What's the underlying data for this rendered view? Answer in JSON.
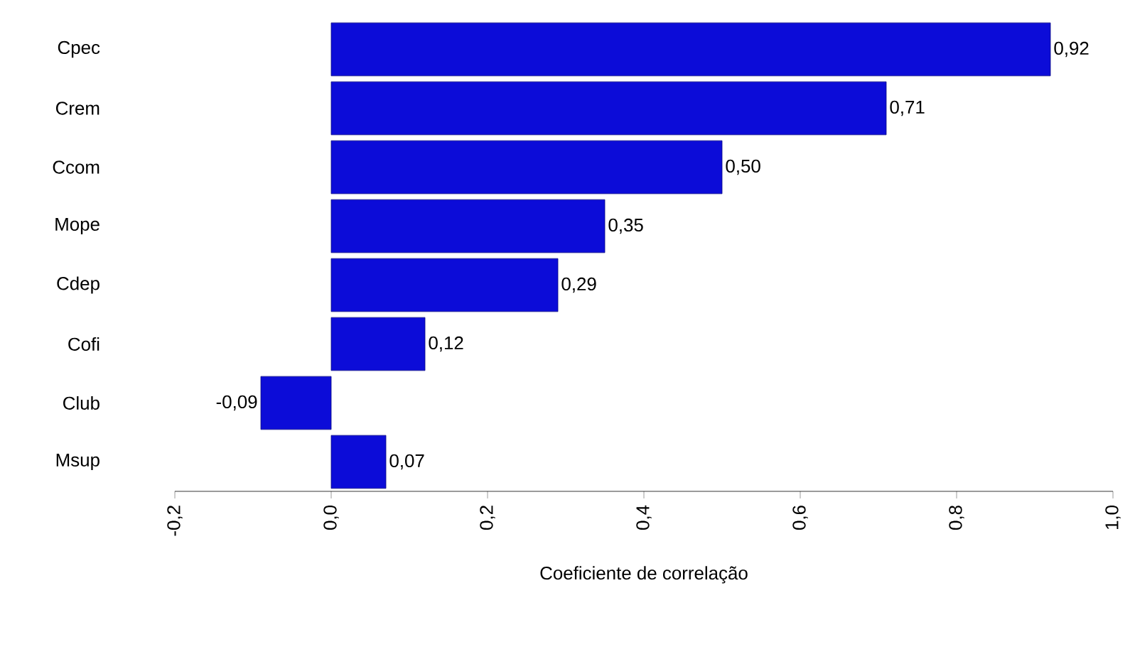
{
  "chart_data": {
    "type": "bar",
    "orientation": "horizontal",
    "xlabel": "Coeficiente de correlação",
    "categories": [
      "Cpec",
      "Crem",
      "Ccom",
      "Mope",
      "Cdep",
      "Cofi",
      "Club",
      "Msup"
    ],
    "values": [
      0.92,
      0.71,
      0.5,
      0.35,
      0.29,
      0.12,
      -0.09,
      0.07
    ],
    "value_labels": [
      "0,92",
      "0,71",
      "0,50",
      "0,35",
      "0,29",
      "0,12",
      "-0,09",
      "0,07"
    ],
    "color": "#0c0cd8",
    "xlim": [
      -0.2,
      1.0
    ],
    "xticks": [
      {
        "value": -0.2,
        "label": "-0,2"
      },
      {
        "value": 0,
        "label": "0,0"
      },
      {
        "value": 0.2,
        "label": "0,2"
      },
      {
        "value": 0.4,
        "label": "0,4"
      },
      {
        "value": 0.6,
        "label": "0,6"
      },
      {
        "value": 0.8,
        "label": "0,8"
      },
      {
        "value": 1.0,
        "label": "1,0"
      }
    ]
  }
}
